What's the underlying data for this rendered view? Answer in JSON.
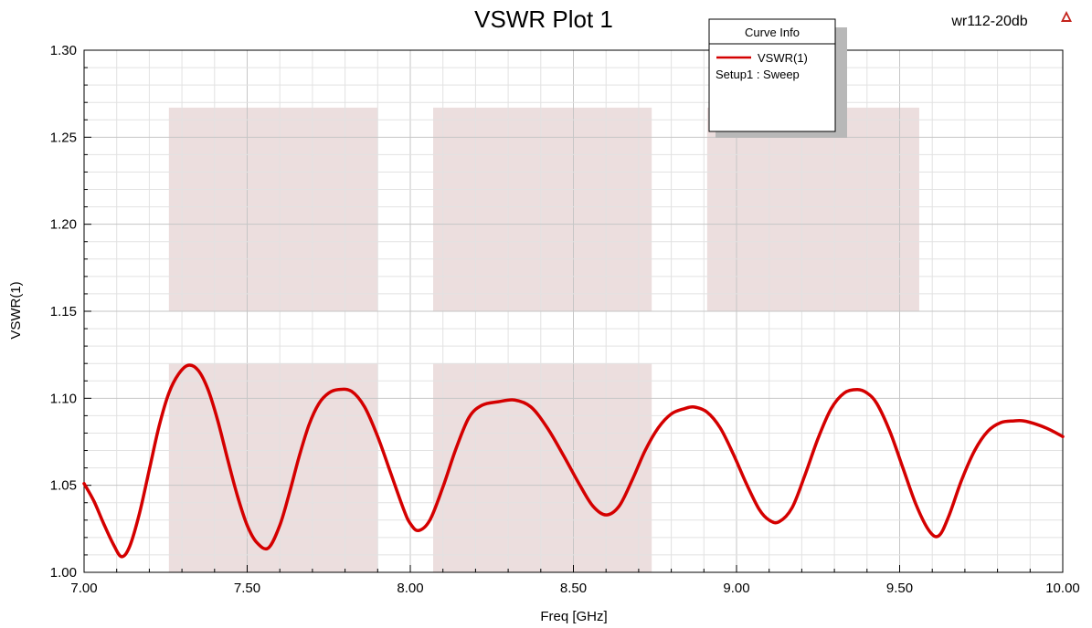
{
  "chart_data": {
    "type": "line",
    "title": "VSWR Plot 1",
    "project_label": "wr112-20db",
    "xlabel": "Freq [GHz]",
    "ylabel": "VSWR(1)",
    "xlim": [
      7.0,
      10.0
    ],
    "ylim": [
      1.0,
      1.3
    ],
    "x_ticks": [
      7.0,
      7.5,
      8.0,
      8.5,
      9.0,
      9.5,
      10.0
    ],
    "x_tick_labels": [
      "7.00",
      "7.50",
      "8.00",
      "8.50",
      "9.00",
      "9.50",
      "10.00"
    ],
    "y_ticks": [
      1.0,
      1.05,
      1.1,
      1.15,
      1.2,
      1.25,
      1.3
    ],
    "y_tick_labels": [
      "1.00",
      "1.05",
      "1.10",
      "1.15",
      "1.20",
      "1.25",
      "1.30"
    ],
    "grid": true,
    "legend": {
      "title": "Curve Info",
      "placement": "top-right",
      "entries": [
        {
          "name": "VSWR(1)",
          "sub": "Setup1 : Sweep",
          "color": "#d40000"
        }
      ]
    },
    "shaded_regions": [
      {
        "x": [
          7.26,
          7.9
        ],
        "y": [
          1.15,
          1.267
        ]
      },
      {
        "x": [
          8.07,
          8.74
        ],
        "y": [
          1.15,
          1.267
        ]
      },
      {
        "x": [
          8.91,
          9.56
        ],
        "y": [
          1.15,
          1.267
        ]
      },
      {
        "x": [
          7.26,
          7.9
        ],
        "y": [
          1.0,
          1.12
        ]
      },
      {
        "x": [
          8.07,
          8.74
        ],
        "y": [
          1.0,
          1.12
        ]
      }
    ],
    "series": [
      {
        "name": "VSWR(1)",
        "color": "#d40000",
        "x": [
          7.0,
          7.03,
          7.06,
          7.09,
          7.115,
          7.14,
          7.17,
          7.2,
          7.23,
          7.26,
          7.29,
          7.32,
          7.35,
          7.38,
          7.41,
          7.44,
          7.47,
          7.5,
          7.53,
          7.565,
          7.6,
          7.63,
          7.66,
          7.69,
          7.72,
          7.75,
          7.78,
          7.82,
          7.86,
          7.9,
          7.94,
          7.98,
          8.0,
          8.025,
          8.06,
          8.1,
          8.14,
          8.18,
          8.22,
          8.27,
          8.32,
          8.37,
          8.42,
          8.47,
          8.52,
          8.56,
          8.6,
          8.64,
          8.68,
          8.72,
          8.76,
          8.8,
          8.84,
          8.87,
          8.91,
          8.95,
          8.99,
          9.03,
          9.07,
          9.1,
          9.13,
          9.17,
          9.21,
          9.25,
          9.29,
          9.33,
          9.37,
          9.4,
          9.43,
          9.47,
          9.51,
          9.55,
          9.59,
          9.62,
          9.65,
          9.69,
          9.73,
          9.77,
          9.81,
          9.85,
          9.88,
          9.92,
          9.96,
          10.0
        ],
        "values": [
          1.051,
          1.041,
          1.028,
          1.016,
          1.009,
          1.015,
          1.034,
          1.059,
          1.084,
          1.103,
          1.114,
          1.119,
          1.116,
          1.105,
          1.087,
          1.065,
          1.044,
          1.027,
          1.017,
          1.014,
          1.027,
          1.046,
          1.067,
          1.085,
          1.097,
          1.103,
          1.105,
          1.104,
          1.095,
          1.078,
          1.057,
          1.036,
          1.028,
          1.024,
          1.03,
          1.049,
          1.071,
          1.089,
          1.096,
          1.098,
          1.099,
          1.095,
          1.083,
          1.067,
          1.05,
          1.038,
          1.033,
          1.038,
          1.053,
          1.07,
          1.083,
          1.091,
          1.094,
          1.095,
          1.092,
          1.083,
          1.068,
          1.051,
          1.036,
          1.03,
          1.029,
          1.037,
          1.056,
          1.077,
          1.094,
          1.103,
          1.105,
          1.103,
          1.097,
          1.081,
          1.06,
          1.039,
          1.024,
          1.021,
          1.032,
          1.053,
          1.07,
          1.081,
          1.086,
          1.087,
          1.087,
          1.085,
          1.082,
          1.078
        ]
      }
    ]
  }
}
